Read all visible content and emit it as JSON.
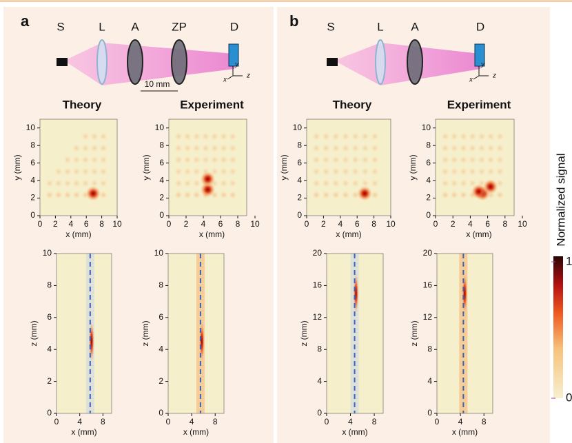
{
  "panels": [
    {
      "label": "a",
      "components": [
        "S",
        "L",
        "A",
        "ZP",
        "D"
      ],
      "separation": "10 mm",
      "axes": [
        "x",
        "y",
        "z"
      ],
      "plots": [
        {
          "title": "Theory",
          "xlabel": "x (mm)",
          "ylabel": "y (mm)",
          "xlim": [
            0,
            10
          ],
          "ylim": [
            0,
            11
          ],
          "xticks": [
            0,
            2,
            4,
            6,
            8,
            10
          ],
          "yticks": [
            0,
            2,
            4,
            6,
            8,
            10
          ]
        },
        {
          "title": "Experiment",
          "xlabel": "x (mm)",
          "ylabel": "y (mm)",
          "xlim": [
            0,
            10
          ],
          "ylim": [
            0,
            11
          ],
          "xticks": [
            0,
            2,
            4,
            6,
            8,
            10
          ],
          "yticks": [
            0,
            2,
            4,
            6,
            8,
            10
          ]
        },
        {
          "xlabel": "x (mm)",
          "ylabel": "z (mm)",
          "xlim": [
            0,
            9.5
          ],
          "ylim": [
            0,
            10
          ],
          "xticks": [
            0,
            4,
            8
          ],
          "yticks": [
            0,
            2,
            4,
            6,
            8,
            10
          ],
          "guide_x": 5.8
        },
        {
          "xlabel": "x (mm)",
          "ylabel": "z (mm)",
          "xlim": [
            0,
            9.5
          ],
          "ylim": [
            0,
            10
          ],
          "xticks": [
            0,
            4,
            8
          ],
          "yticks": [
            0,
            2,
            4,
            6,
            8,
            10
          ],
          "guide_x": 5.5
        }
      ]
    },
    {
      "label": "b",
      "components": [
        "S",
        "L",
        "A",
        "D"
      ],
      "axes": [
        "x",
        "y",
        "z"
      ],
      "plots": [
        {
          "title": "Theory",
          "xlabel": "x (mm)",
          "ylabel": "y (mm)",
          "xlim": [
            0,
            10
          ],
          "ylim": [
            0,
            11
          ],
          "xticks": [
            0,
            2,
            4,
            6,
            8,
            10
          ],
          "yticks": [
            0,
            2,
            4,
            6,
            8,
            10
          ]
        },
        {
          "title": "Experiment",
          "xlabel": "x (mm)",
          "ylabel": "y (mm)",
          "xlim": [
            0,
            10
          ],
          "ylim": [
            0,
            11
          ],
          "xticks": [
            0,
            2,
            4,
            6,
            8,
            10
          ],
          "yticks": [
            0,
            2,
            4,
            6,
            8,
            10
          ]
        },
        {
          "xlabel": "x (mm)",
          "ylabel": "z (mm)",
          "xlim": [
            0,
            9.5
          ],
          "ylim": [
            0,
            20
          ],
          "xticks": [
            0,
            4,
            8
          ],
          "yticks": [
            0,
            4,
            8,
            12,
            16,
            20
          ],
          "guide_x": 4.7
        },
        {
          "xlabel": "x (mm)",
          "ylabel": "z (mm)",
          "xlim": [
            0,
            9.5
          ],
          "ylim": [
            0,
            20
          ],
          "xticks": [
            0,
            4,
            8
          ],
          "yticks": [
            0,
            4,
            8,
            12,
            16,
            20
          ],
          "guide_x": 4.5
        }
      ]
    }
  ],
  "colorbar": {
    "label": "Normalized signal",
    "ticks": [
      0,
      1
    ]
  }
}
